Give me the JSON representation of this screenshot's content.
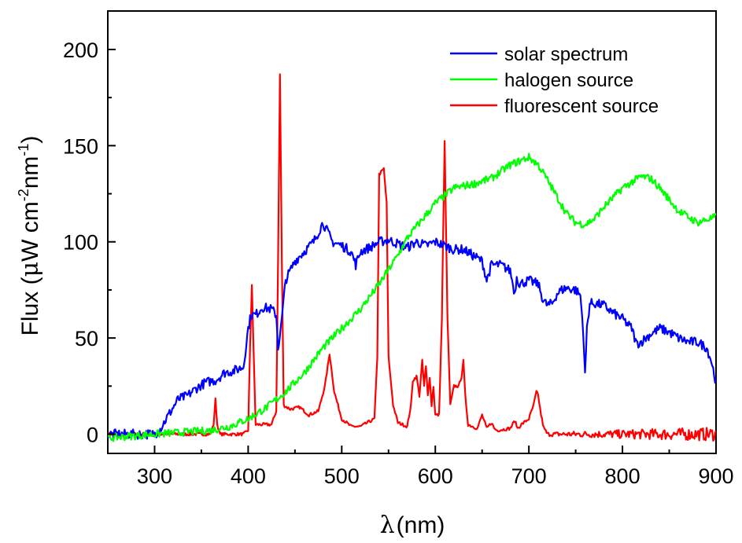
{
  "chart_data": {
    "type": "line",
    "xlabel": {
      "symbol": "λ",
      "unit": "(nm)"
    },
    "ylabel": {
      "prefix": "Flux (",
      "mu": "μ",
      "w": "W cm",
      "exp1": "-2",
      "nm": "nm",
      "exp2": "-1",
      "suffix": ")"
    },
    "xlim": [
      250,
      900
    ],
    "ylim": [
      -10,
      220
    ],
    "xticks": [
      300,
      400,
      500,
      600,
      700,
      800,
      900
    ],
    "yticks": [
      0,
      50,
      100,
      150,
      200
    ],
    "grid": false,
    "legend_position": "top-right",
    "series": [
      {
        "name": "solar spectrum",
        "color": "#0000ff",
        "noise": 2.5,
        "x": [
          250,
          300,
          305,
          315,
          325,
          335,
          345,
          355,
          365,
          375,
          385,
          395,
          400,
          403,
          408,
          415,
          425,
          430,
          432,
          435,
          440,
          450,
          460,
          470,
          480,
          485,
          490,
          500,
          510,
          515,
          520,
          530,
          540,
          550,
          560,
          570,
          580,
          590,
          600,
          610,
          620,
          630,
          640,
          650,
          655,
          660,
          670,
          680,
          685,
          687,
          690,
          700,
          710,
          715,
          718,
          720,
          725,
          730,
          735,
          740,
          750,
          755,
          758,
          760,
          762,
          765,
          770,
          780,
          790,
          800,
          810,
          815,
          820,
          830,
          840,
          850,
          860,
          870,
          880,
          890,
          895,
          900
        ],
        "y": [
          0,
          0,
          2,
          10,
          18,
          20,
          24,
          27,
          28,
          32,
          33,
          35,
          55,
          62,
          62,
          66,
          65,
          62,
          45,
          55,
          80,
          90,
          95,
          100,
          110,
          105,
          100,
          98,
          95,
          88,
          95,
          97,
          100,
          101,
          99,
          97,
          100,
          98,
          100,
          98,
          96,
          96,
          93,
          90,
          80,
          88,
          88,
          85,
          73,
          82,
          78,
          80,
          78,
          70,
          68,
          67,
          68,
          73,
          75,
          76,
          75,
          72,
          55,
          30,
          55,
          68,
          68,
          67,
          63,
          60,
          55,
          47,
          48,
          52,
          55,
          53,
          50,
          48,
          48,
          45,
          38,
          27
        ]
      },
      {
        "name": "halogen source",
        "color": "#00ff00",
        "noise": 2.0,
        "x": [
          250,
          300,
          330,
          360,
          380,
          400,
          420,
          440,
          460,
          480,
          500,
          520,
          540,
          560,
          570,
          580,
          590,
          600,
          620,
          640,
          660,
          680,
          700,
          710,
          720,
          740,
          750,
          760,
          770,
          780,
          800,
          820,
          830,
          840,
          860,
          880,
          900
        ],
        "y": [
          -2,
          0,
          1,
          2,
          4,
          8,
          14,
          22,
          32,
          45,
          55,
          65,
          78,
          93,
          102,
          108,
          114,
          120,
          128,
          130,
          133,
          140,
          144,
          140,
          132,
          115,
          110,
          109,
          112,
          118,
          128,
          134,
          133,
          128,
          116,
          110,
          113
        ]
      },
      {
        "name": "fluorescent source",
        "color": "#ff0000",
        "noise": 0.8,
        "x": [
          250,
          360,
          363,
          365,
          367,
          370,
          395,
          400,
          402,
          404,
          406,
          408,
          415,
          425,
          430,
          432,
          434,
          436,
          438,
          445,
          455,
          465,
          475,
          482,
          487,
          492,
          500,
          510,
          520,
          535,
          538,
          540,
          545,
          548,
          550,
          555,
          560,
          570,
          574,
          576,
          580,
          583,
          586,
          588,
          590,
          592,
          594,
          596,
          598,
          600,
          604,
          607,
          610,
          613,
          616,
          620,
          625,
          628,
          630,
          632,
          635,
          645,
          650,
          655,
          660,
          663,
          666,
          680,
          685,
          688,
          692,
          700,
          705,
          708,
          710,
          713,
          716,
          720,
          900
        ],
        "y": [
          0,
          0,
          5,
          18,
          5,
          0,
          0,
          2,
          45,
          78,
          40,
          5,
          5,
          5,
          12,
          90,
          187,
          90,
          15,
          13,
          14,
          10,
          12,
          25,
          42,
          22,
          8,
          4,
          4,
          8,
          40,
          135,
          138,
          120,
          40,
          15,
          6,
          4,
          15,
          28,
          30,
          20,
          38,
          25,
          35,
          20,
          30,
          15,
          25,
          10,
          10,
          60,
          152,
          60,
          15,
          25,
          25,
          30,
          38,
          20,
          5,
          3,
          10,
          3,
          6,
          3,
          2,
          3,
          7,
          3,
          5,
          8,
          15,
          22,
          20,
          10,
          3,
          0,
          0
        ],
        "noise_profile": [
          [
            250,
            0.8
          ],
          [
            700,
            0.8
          ],
          [
            850,
            3
          ],
          [
            900,
            3.5
          ]
        ]
      }
    ]
  }
}
